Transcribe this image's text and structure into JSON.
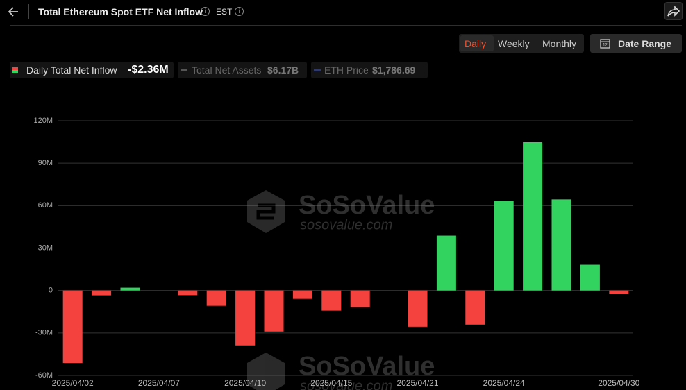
{
  "header": {
    "title": "Total Ethereum Spot ETF Net Inflow",
    "timezone": "EST"
  },
  "toolbar": {
    "periods": [
      "Daily",
      "Weekly",
      "Monthly"
    ],
    "active": "Daily",
    "date_range": "Date Range"
  },
  "legend": [
    {
      "name": "Daily Total Net Inflow",
      "value": "-$2.36M"
    },
    {
      "name": "Total Net Assets",
      "value": "$6.17B"
    },
    {
      "name": "ETH Price",
      "value": "$1,786.69"
    }
  ],
  "watermark": {
    "brand": "SoSoValue",
    "site": "sosovalue.com"
  },
  "chart_data": {
    "type": "bar",
    "categories": [
      "2025/04/02",
      null,
      null,
      "2025/04/07",
      null,
      null,
      "2025/04/10",
      null,
      null,
      "2025/04/15",
      null,
      null,
      "2025/04/21",
      null,
      null,
      "2025/04/24",
      null,
      null,
      null,
      "2025/04/30"
    ],
    "values": [
      -51.2,
      -3.4,
      2.0,
      0,
      -3.3,
      -10.8,
      -38.8,
      -29.0,
      -5.9,
      -14.2,
      -11.8,
      0,
      -25.6,
      38.8,
      -24.1,
      63.5,
      104.8,
      64.4,
      18.2,
      -2.36
    ],
    "positive_color": "#33d35f",
    "negative_color": "#f4433f",
    "ylim": [
      -60,
      120
    ],
    "yticks": [
      {
        "value": -60,
        "label": "-60M"
      },
      {
        "value": -30,
        "label": "-30M"
      },
      0,
      {
        "value": 30,
        "label": "30M"
      },
      {
        "value": 60,
        "label": "60M"
      },
      {
        "value": 90,
        "label": "90M"
      },
      {
        "value": 120,
        "label": "120M"
      }
    ],
    "grid": true
  }
}
